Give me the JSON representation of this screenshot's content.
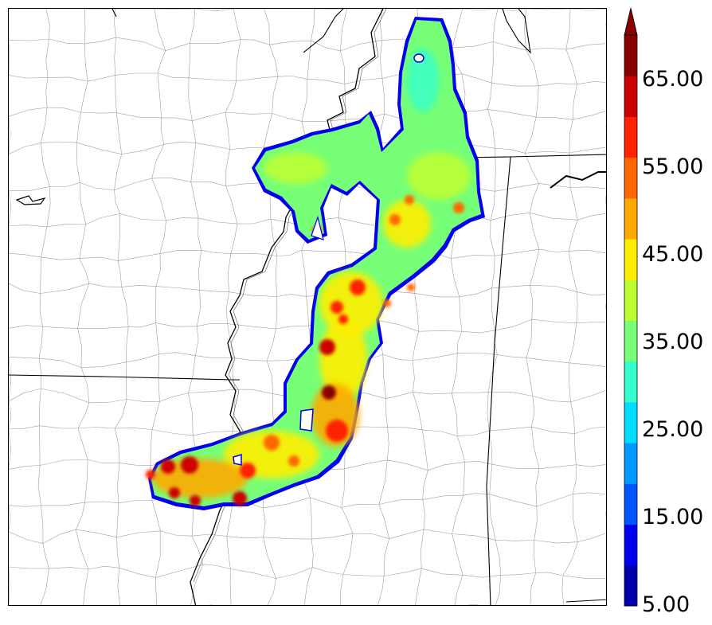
{
  "colorbar": {
    "tick_labels": [
      "65.00",
      "55.00",
      "45.00",
      "35.00",
      "25.00",
      "15.00",
      "5.00"
    ],
    "colors": [
      "#0000aa",
      "#0000ee",
      "#0055ff",
      "#0099ff",
      "#00ddff",
      "#33ffcc",
      "#77ff77",
      "#bbff33",
      "#ffee00",
      "#ffaa00",
      "#ff6600",
      "#ff2200",
      "#cc0000",
      "#880000"
    ],
    "extend": "max"
  },
  "map": {
    "field": "reflectivity-like intensity swath",
    "background": "#ffffff",
    "boundary_color": "#000000",
    "county_color": "#9a9a9a"
  }
}
